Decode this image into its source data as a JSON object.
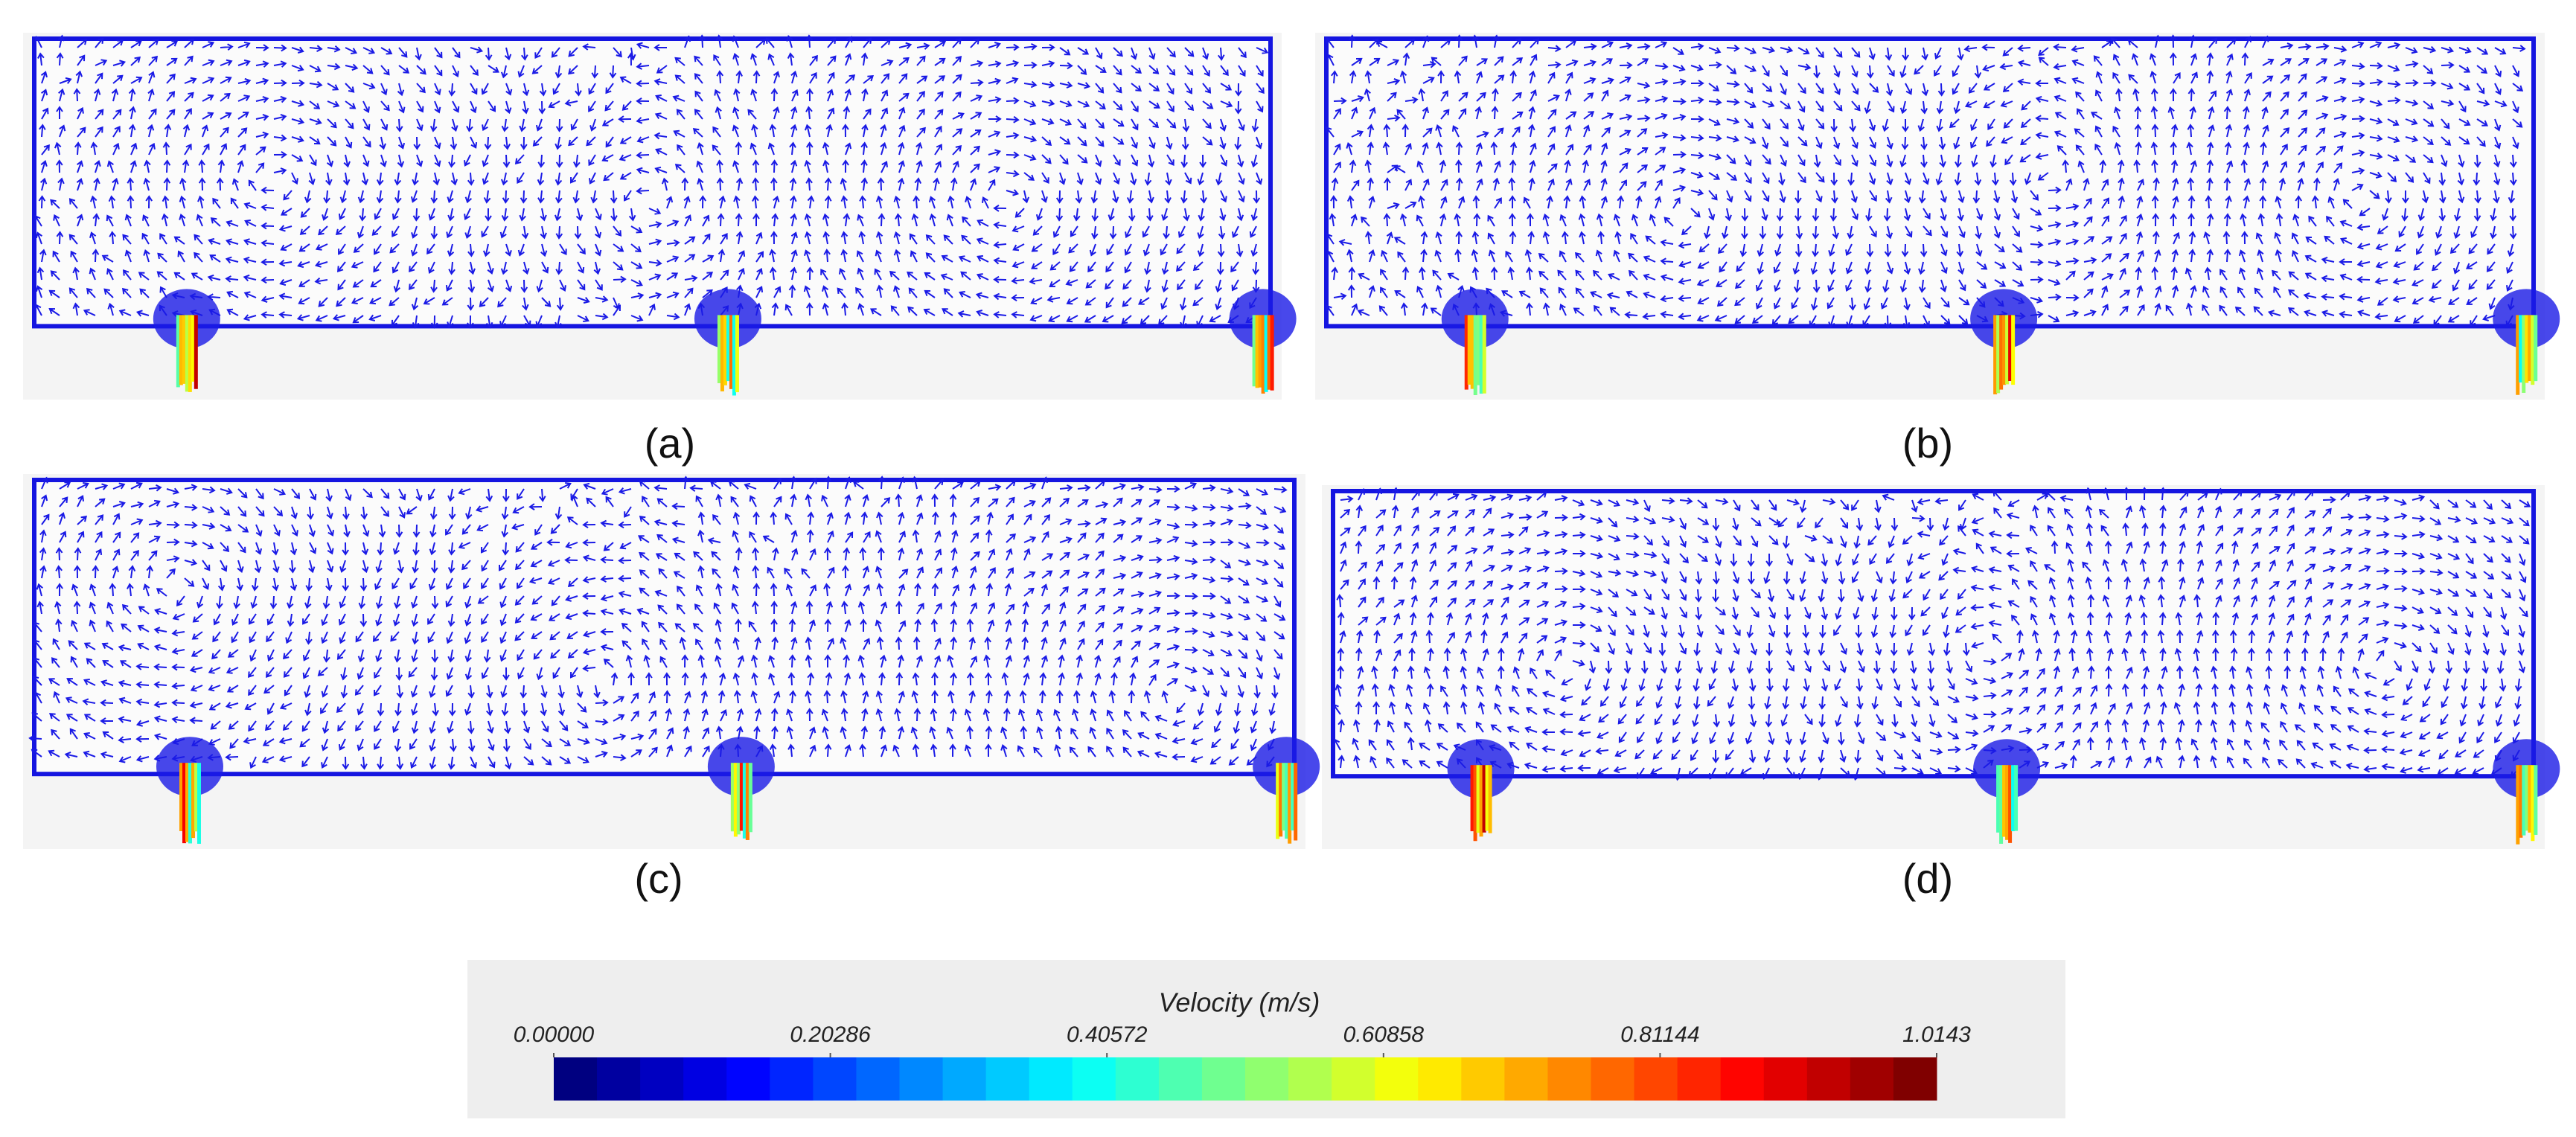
{
  "panels": [
    {
      "label": "(a)"
    },
    {
      "label": "(b)"
    },
    {
      "label": "(c)"
    },
    {
      "label": "(d)"
    }
  ],
  "colorbar": {
    "title": "Velocity (m/s)",
    "range": [
      0,
      1.0143
    ],
    "ticks": [
      {
        "value": 0,
        "label": "0.00000"
      },
      0.20286,
      0.40572,
      0.60858,
      0.81144,
      1.0143
    ]
  }
}
